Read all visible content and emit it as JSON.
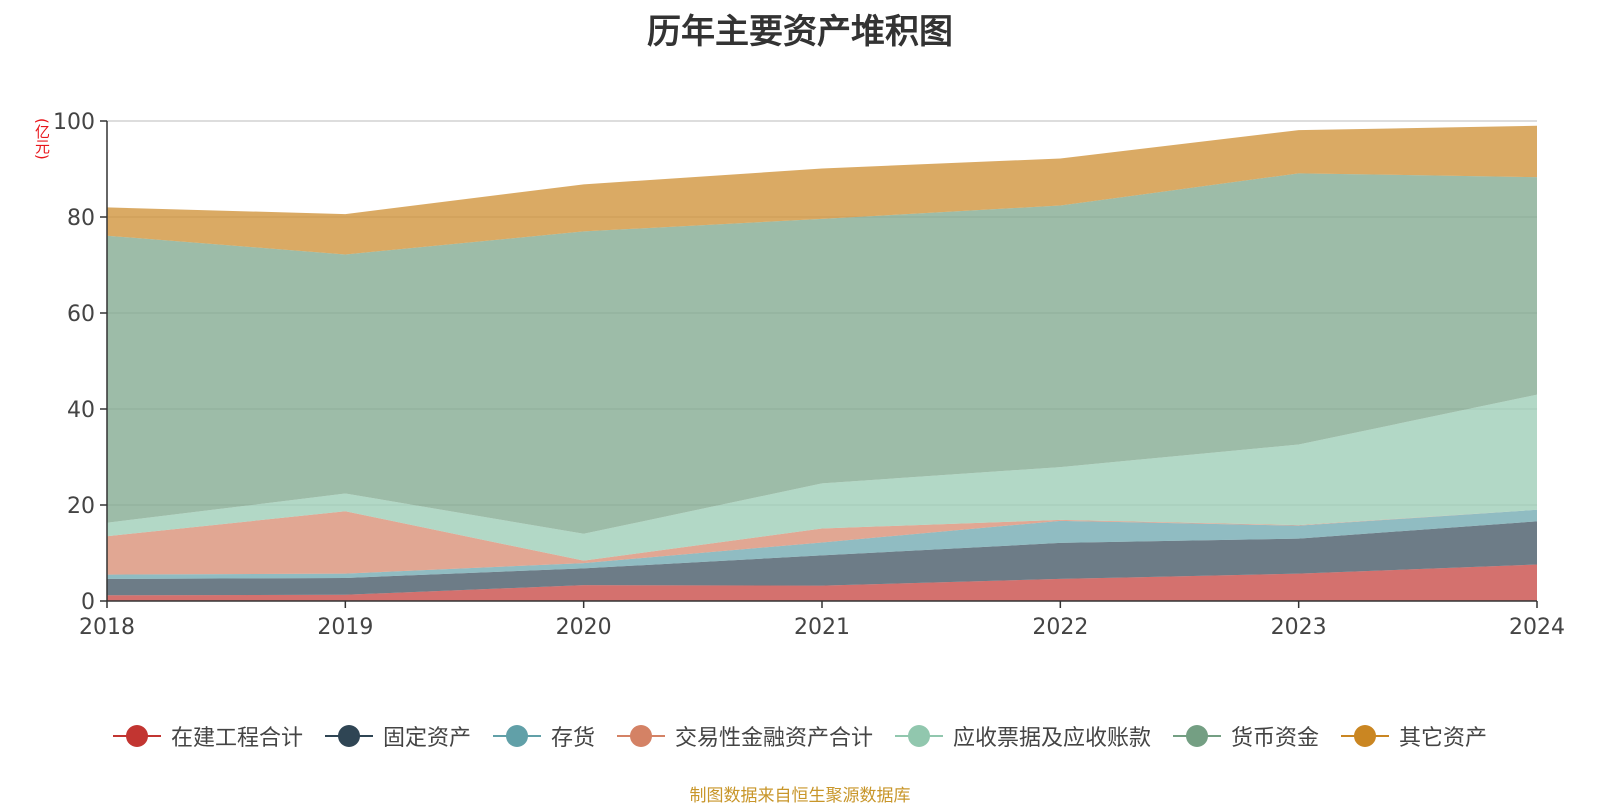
{
  "chart_data": {
    "type": "area",
    "title": "历年主要资产堆积图",
    "ylabel": "(亿元)",
    "x": [
      "2018",
      "2019",
      "2020",
      "2021",
      "2022",
      "2023",
      "2024"
    ],
    "ylim": [
      0,
      100
    ],
    "yticks": [
      0,
      20,
      40,
      60,
      80,
      100
    ],
    "stacked": true,
    "grid": true,
    "legend_position": "bottom",
    "series": [
      {
        "name": "在建工程合计",
        "color": "#c23531",
        "values": [
          1.2,
          1.3,
          3.3,
          3.2,
          4.6,
          5.7,
          7.6
        ]
      },
      {
        "name": "固定资产",
        "color": "#2f4554",
        "values": [
          3.4,
          3.5,
          3.5,
          6.3,
          7.5,
          7.3,
          9.0
        ]
      },
      {
        "name": "存货",
        "color": "#61a0a8",
        "values": [
          0.9,
          0.9,
          1.1,
          2.7,
          4.6,
          2.7,
          2.4
        ]
      },
      {
        "name": "交易性金融资产合计",
        "color": "#d48265",
        "values": [
          8.0,
          13.0,
          0.5,
          2.9,
          0.2,
          0.1,
          0.0
        ]
      },
      {
        "name": "应收票据及应收账款",
        "color": "#91c7ae",
        "values": [
          2.8,
          3.7,
          5.6,
          9.4,
          11.0,
          16.8,
          24.0
        ]
      },
      {
        "name": "货币资金",
        "color": "#749f83",
        "values": [
          59.8,
          49.8,
          63.0,
          55.1,
          54.5,
          56.5,
          45.3
        ]
      },
      {
        "name": "其它资产",
        "color": "#ca8622",
        "values": [
          5.9,
          8.4,
          9.8,
          10.5,
          9.8,
          9.0,
          10.7
        ]
      }
    ]
  },
  "footer": {
    "source": "制图数据来自恒生聚源数据库"
  }
}
